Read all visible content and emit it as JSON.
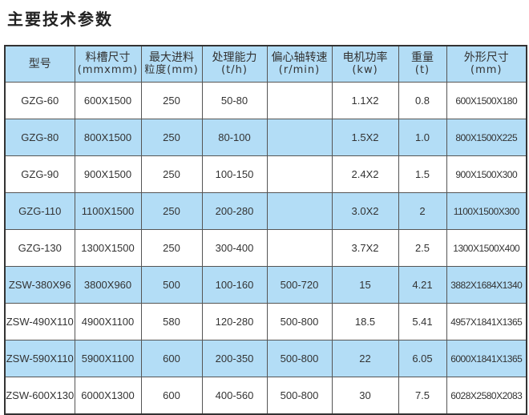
{
  "title": "主要技术参数",
  "colors": {
    "header_bg": "#b3ddf6",
    "stripe_bg": "#b3ddf6",
    "border": "#333333"
  },
  "headers": [
    {
      "label": "型号",
      "unit": ""
    },
    {
      "label": "料槽尺寸",
      "unit": "(mmxmm)"
    },
    {
      "label": "最大进料",
      "unit": "粒度(mm)"
    },
    {
      "label": "处理能力",
      "unit": "(t/h)"
    },
    {
      "label": "偏心轴转速",
      "unit": "(r/min)"
    },
    {
      "label": "电机功率",
      "unit": "(kw)"
    },
    {
      "label": "重量",
      "unit": "(t)"
    },
    {
      "label": "外形尺寸",
      "unit": "(mm)"
    }
  ],
  "rows": [
    [
      "GZG-60",
      "600X1500",
      "250",
      "50-80",
      "",
      "1.1X2",
      "0.8",
      "600X1500X180"
    ],
    [
      "GZG-80",
      "800X1500",
      "250",
      "80-100",
      "",
      "1.5X2",
      "1.0",
      "800X1500X225"
    ],
    [
      "GZG-90",
      "900X1500",
      "250",
      "100-150",
      "",
      "2.4X2",
      "1.5",
      "900X1500X300"
    ],
    [
      "GZG-110",
      "1100X1500",
      "250",
      "200-280",
      "",
      "3.0X2",
      "2",
      "1100X1500X300"
    ],
    [
      "GZG-130",
      "1300X1500",
      "250",
      "300-400",
      "",
      "3.7X2",
      "2.5",
      "1300X1500X400"
    ],
    [
      "ZSW-380X96",
      "3800X960",
      "500",
      "100-160",
      "500-720",
      "15",
      "4.21",
      "3882X1684X1340"
    ],
    [
      "ZSW-490X110",
      "4900X1100",
      "580",
      "120-280",
      "500-800",
      "18.5",
      "5.41",
      "4957X1841X1365"
    ],
    [
      "ZSW-590X110",
      "5900X1100",
      "600",
      "200-350",
      "500-800",
      "22",
      "6.05",
      "6000X1841X1365"
    ],
    [
      "ZSW-600X130",
      "6000X1300",
      "600",
      "400-560",
      "500-800",
      "30",
      "7.5",
      "6028X2580X2083"
    ]
  ]
}
